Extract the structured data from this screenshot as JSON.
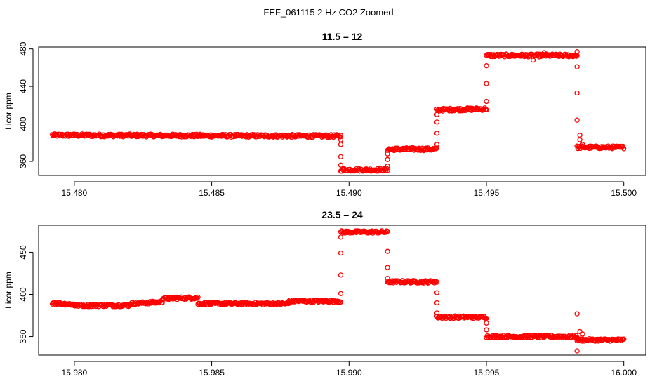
{
  "figure_title": "FEF_061115  2 Hz CO2 Zoomed",
  "chart_data": [
    {
      "type": "scatter",
      "title": "11.5 – 12",
      "xlabel": "",
      "ylabel": "Licor ppm",
      "xlim": [
        15.4787,
        15.5008
      ],
      "ylim": [
        345,
        482
      ],
      "x_ticks": [
        15.48,
        15.485,
        15.49,
        15.495,
        15.5
      ],
      "x_tick_labels": [
        "15.480",
        "15.485",
        "15.490",
        "15.495",
        "15.500"
      ],
      "y_ticks": [
        360,
        400,
        440,
        480
      ],
      "y_tick_labels": [
        "360",
        "400",
        "440",
        "480"
      ],
      "marker_color": "#ff0000",
      "marker": "open-circle",
      "segments": [
        {
          "x_start": 15.4792,
          "x_end": 15.4897,
          "y_start": 388,
          "y_end": 387
        },
        {
          "x_start": 15.4897,
          "x_end": 15.4914,
          "y_start": 351,
          "y_end": 351
        },
        {
          "x_start": 15.4914,
          "x_end": 15.4932,
          "y_start": 373,
          "y_end": 373
        },
        {
          "x_start": 15.4932,
          "x_end": 15.495,
          "y_start": 415,
          "y_end": 416
        },
        {
          "x_start": 15.495,
          "x_end": 15.4983,
          "y_start": 473,
          "y_end": 473
        },
        {
          "x_start": 15.4983,
          "x_end": 15.5,
          "y_start": 375,
          "y_end": 375
        }
      ],
      "transition_points": [
        {
          "x": 15.4897,
          "y": 383
        },
        {
          "x": 15.4897,
          "y": 378
        },
        {
          "x": 15.4897,
          "y": 365
        },
        {
          "x": 15.4897,
          "y": 356
        },
        {
          "x": 15.4914,
          "y": 355
        },
        {
          "x": 15.4914,
          "y": 362
        },
        {
          "x": 15.4914,
          "y": 368
        },
        {
          "x": 15.4932,
          "y": 378
        },
        {
          "x": 15.4932,
          "y": 390
        },
        {
          "x": 15.4932,
          "y": 402
        },
        {
          "x": 15.4932,
          "y": 410
        },
        {
          "x": 15.495,
          "y": 424
        },
        {
          "x": 15.495,
          "y": 443
        },
        {
          "x": 15.495,
          "y": 462
        },
        {
          "x": 15.4983,
          "y": 477
        },
        {
          "x": 15.4983,
          "y": 461
        },
        {
          "x": 15.4983,
          "y": 433
        },
        {
          "x": 15.4983,
          "y": 404
        },
        {
          "x": 15.4984,
          "y": 388
        },
        {
          "x": 15.4984,
          "y": 383
        },
        {
          "x": 15.4985,
          "y": 378
        },
        {
          "x": 15.4967,
          "y": 468
        },
        {
          "x": 15.4971,
          "y": 476
        }
      ]
    },
    {
      "type": "scatter",
      "title": "23.5 – 24",
      "xlabel": "",
      "ylabel": "Licor ppm",
      "xlim": [
        15.9787,
        16.0008
      ],
      "ylim": [
        328,
        482
      ],
      "x_ticks": [
        15.98,
        15.985,
        15.99,
        15.995,
        16.0
      ],
      "x_tick_labels": [
        "15.980",
        "15.985",
        "15.990",
        "15.995",
        "16.000"
      ],
      "y_ticks": [
        350,
        400,
        450
      ],
      "y_tick_labels": [
        "350",
        "400",
        "450"
      ],
      "marker_color": "#ff0000",
      "marker": "open-circle",
      "segments": [
        {
          "x_start": 15.9792,
          "x_end": 15.98,
          "y_start": 390,
          "y_end": 388
        },
        {
          "x_start": 15.98,
          "x_end": 15.982,
          "y_start": 387,
          "y_end": 387
        },
        {
          "x_start": 15.982,
          "x_end": 15.9832,
          "y_start": 389,
          "y_end": 391
        },
        {
          "x_start": 15.9832,
          "x_end": 15.9845,
          "y_start": 395,
          "y_end": 396
        },
        {
          "x_start": 15.9845,
          "x_end": 15.9878,
          "y_start": 389,
          "y_end": 389
        },
        {
          "x_start": 15.9878,
          "x_end": 15.9897,
          "y_start": 392,
          "y_end": 392
        },
        {
          "x_start": 15.9897,
          "x_end": 15.9914,
          "y_start": 474,
          "y_end": 474
        },
        {
          "x_start": 15.9914,
          "x_end": 15.9932,
          "y_start": 415,
          "y_end": 415
        },
        {
          "x_start": 15.9932,
          "x_end": 15.995,
          "y_start": 373,
          "y_end": 373
        },
        {
          "x_start": 15.995,
          "x_end": 15.9983,
          "y_start": 350,
          "y_end": 350
        },
        {
          "x_start": 15.9983,
          "x_end": 16.0,
          "y_start": 346,
          "y_end": 346
        }
      ],
      "transition_points": [
        {
          "x": 15.9897,
          "y": 401
        },
        {
          "x": 15.9897,
          "y": 423
        },
        {
          "x": 15.9897,
          "y": 449
        },
        {
          "x": 15.9897,
          "y": 468
        },
        {
          "x": 15.9914,
          "y": 451
        },
        {
          "x": 15.9914,
          "y": 432
        },
        {
          "x": 15.9914,
          "y": 419
        },
        {
          "x": 15.9932,
          "y": 402
        },
        {
          "x": 15.9932,
          "y": 390
        },
        {
          "x": 15.9932,
          "y": 378
        },
        {
          "x": 15.995,
          "y": 366
        },
        {
          "x": 15.995,
          "y": 358
        },
        {
          "x": 15.9983,
          "y": 377
        },
        {
          "x": 15.9983,
          "y": 333
        },
        {
          "x": 15.9984,
          "y": 356
        },
        {
          "x": 15.9985,
          "y": 353
        }
      ]
    }
  ]
}
